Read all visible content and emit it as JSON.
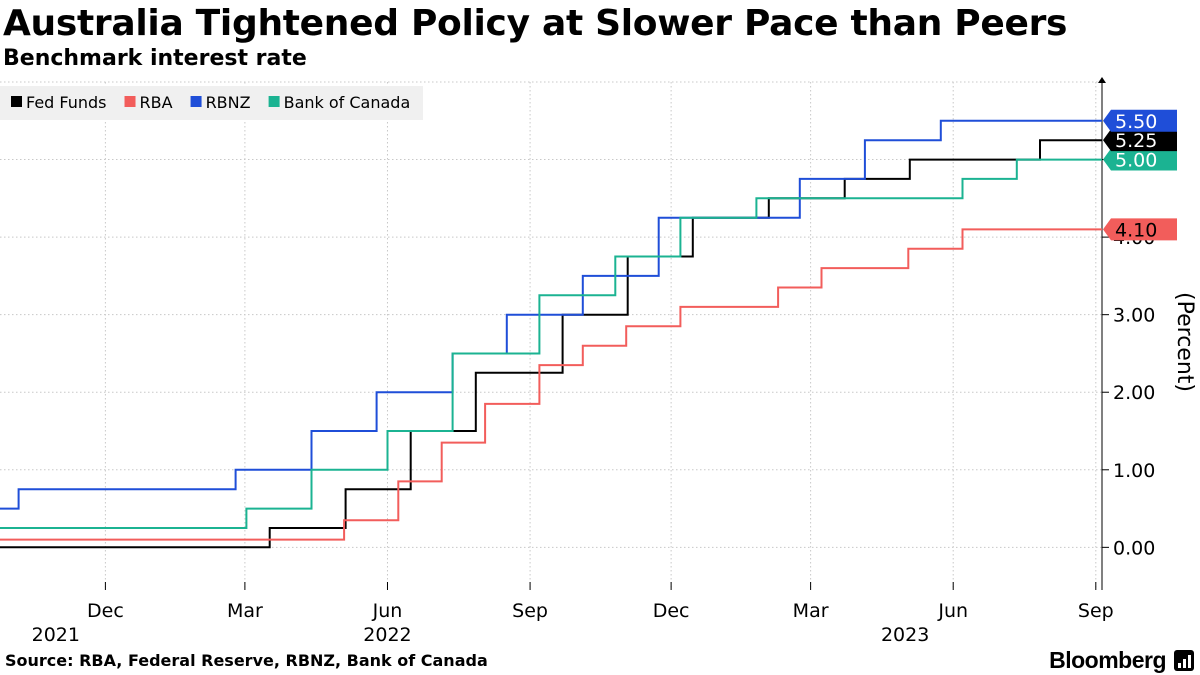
{
  "header": {
    "title": "Australia Tightened Policy at Slower Pace than Peers",
    "subtitle": "Benchmark interest rate"
  },
  "footer": {
    "source": "Source: RBA, Federal Reserve, RBNZ, Bank of Canada",
    "brand": "Bloomberg"
  },
  "icons": {
    "brand_mark": "bloomberg-terminal-icon"
  },
  "chart_data": {
    "type": "line",
    "step": true,
    "title": "Australia Tightened Policy at Slower Pace than Peers",
    "subtitle": "Benchmark interest rate",
    "ylabel": "(Percent)",
    "xlabel": "",
    "xlim": [
      "2021-09-24",
      "2023-09-05"
    ],
    "ylim": [
      -0.55,
      6.0
    ],
    "yticks": [
      0,
      1,
      2,
      3,
      4,
      5
    ],
    "ytick_labels": [
      "0.00",
      "1.00",
      "2.00",
      "3.00",
      "4.00",
      "5.00"
    ],
    "xticks": [
      {
        "date": "2021-12-01",
        "label": "Dec"
      },
      {
        "date": "2022-03-01",
        "label": "Mar"
      },
      {
        "date": "2022-06-01",
        "label": "Jun"
      },
      {
        "date": "2022-09-01",
        "label": "Sep"
      },
      {
        "date": "2022-12-01",
        "label": "Dec"
      },
      {
        "date": "2023-03-01",
        "label": "Mar"
      },
      {
        "date": "2023-06-01",
        "label": "Jun"
      },
      {
        "date": "2023-09-01",
        "label": "Sep"
      }
    ],
    "year_labels": [
      {
        "date": "2021-10-30",
        "label": "2021"
      },
      {
        "date": "2022-06-01",
        "label": "2022"
      },
      {
        "date": "2023-05-01",
        "label": "2023"
      }
    ],
    "grid": true,
    "legend_position": "top-left",
    "series": [
      {
        "name": "Fed Funds",
        "color": "#000000",
        "end_label": "5.25",
        "points": [
          [
            "2021-09-24",
            0.0
          ],
          [
            "2022-03-17",
            0.25
          ],
          [
            "2022-05-05",
            0.75
          ],
          [
            "2022-06-16",
            1.5
          ],
          [
            "2022-07-28",
            2.25
          ],
          [
            "2022-09-22",
            3.0
          ],
          [
            "2022-11-03",
            3.75
          ],
          [
            "2022-12-15",
            4.25
          ],
          [
            "2023-02-02",
            4.5
          ],
          [
            "2023-03-23",
            4.75
          ],
          [
            "2023-05-04",
            5.0
          ],
          [
            "2023-07-27",
            5.25
          ],
          [
            "2023-09-05",
            5.25
          ]
        ]
      },
      {
        "name": "RBA",
        "color": "#f25d5b",
        "end_label": "4.10",
        "points": [
          [
            "2021-09-24",
            0.1
          ],
          [
            "2022-05-04",
            0.35
          ],
          [
            "2022-06-08",
            0.85
          ],
          [
            "2022-07-06",
            1.35
          ],
          [
            "2022-08-03",
            1.85
          ],
          [
            "2022-09-07",
            2.35
          ],
          [
            "2022-10-05",
            2.6
          ],
          [
            "2022-11-02",
            2.85
          ],
          [
            "2022-12-07",
            3.1
          ],
          [
            "2023-02-08",
            3.35
          ],
          [
            "2023-03-08",
            3.6
          ],
          [
            "2023-05-03",
            3.85
          ],
          [
            "2023-06-07",
            4.1
          ],
          [
            "2023-09-05",
            4.1
          ]
        ]
      },
      {
        "name": "RBNZ",
        "color": "#1f4ed8",
        "end_label": "5.50",
        "points": [
          [
            "2021-09-24",
            0.5
          ],
          [
            "2021-10-06",
            0.75
          ],
          [
            "2021-11-24",
            0.75
          ],
          [
            "2022-02-23",
            1.0
          ],
          [
            "2022-04-13",
            1.5
          ],
          [
            "2022-05-25",
            2.0
          ],
          [
            "2022-07-13",
            2.5
          ],
          [
            "2022-08-17",
            3.0
          ],
          [
            "2022-10-05",
            3.5
          ],
          [
            "2022-11-23",
            4.25
          ],
          [
            "2023-02-22",
            4.75
          ],
          [
            "2023-04-05",
            5.25
          ],
          [
            "2023-05-24",
            5.5
          ],
          [
            "2023-09-05",
            5.5
          ]
        ]
      },
      {
        "name": "Bank of Canada",
        "color": "#1bb392",
        "end_label": "5.00",
        "points": [
          [
            "2021-09-24",
            0.25
          ],
          [
            "2022-03-02",
            0.5
          ],
          [
            "2022-04-13",
            1.0
          ],
          [
            "2022-06-01",
            1.5
          ],
          [
            "2022-07-13",
            2.5
          ],
          [
            "2022-09-07",
            3.25
          ],
          [
            "2022-10-26",
            3.75
          ],
          [
            "2022-12-07",
            4.25
          ],
          [
            "2023-01-25",
            4.5
          ],
          [
            "2023-06-07",
            4.75
          ],
          [
            "2023-07-12",
            5.0
          ],
          [
            "2023-09-05",
            5.0
          ]
        ]
      }
    ]
  }
}
